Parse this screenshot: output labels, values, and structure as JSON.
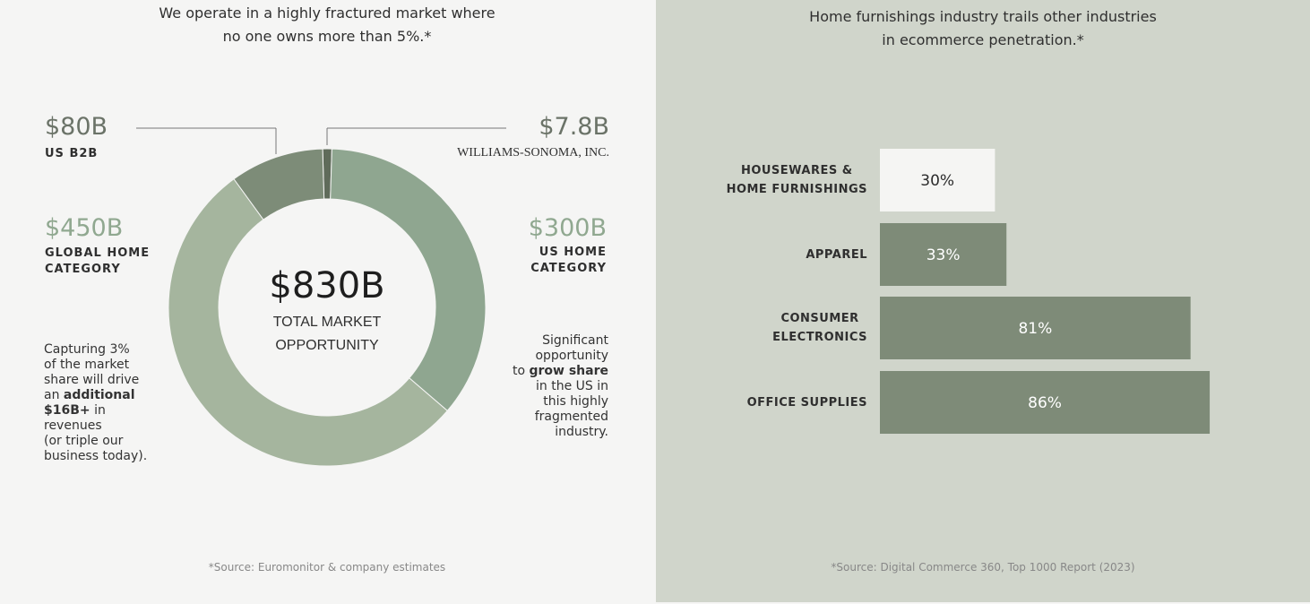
{
  "chart_data": [
    {
      "type": "donut",
      "title": "We operate in a highly fractured market where\nno one owns more than 5%.*",
      "categories": [
        "WILLIAMS-SONOMA, INC.",
        "US HOME\nCATEGORY",
        "GLOBAL HOME\nCATEGORY",
        "US B2B"
      ],
      "values": [
        7.8,
        300,
        450,
        80
      ],
      "value_labels": [
        "$7.8B",
        "$300B",
        "$450B",
        "$80B"
      ],
      "colors": [
        "#5f6b5a",
        "#8fa690",
        "#a5b59e",
        "#7d8c78"
      ],
      "center_label": "$830B",
      "center_text": "TOTAL MARKET\nOPPORTUNITY",
      "annotations": [
        [
          "Capturing 3%\nof the market\nshare will drive\nan ",
          "additional\n$16B+",
          " in\nrevenues\n(or triple our\nbusiness today)."
        ],
        [
          "Significant\nopportunity\nto ",
          "grow share",
          "\nin the US in\nthis highly\nfragmented\nindustry."
        ]
      ],
      "source": "*Source: Euromonitor & company estimates"
    },
    {
      "type": "bar",
      "title": "Home furnishings industry trails other industries\nin ecommerce penetration.*",
      "categories": [
        "HOUSEWARES &\nHOME FURNISHINGS",
        "APPAREL",
        "CONSUMER\nELECTRONICS",
        "OFFICE SUPPLIES"
      ],
      "values": [
        30,
        33,
        81,
        86
      ],
      "value_labels": [
        "30%",
        "33%",
        "81%",
        "86%"
      ],
      "colors": [
        "#f5f5f3",
        "#7e8b78",
        "#7e8b78",
        "#7e8b78"
      ],
      "label_colors": [
        "#2b2b2b",
        "#ffffff",
        "#ffffff",
        "#ffffff"
      ],
      "xlim": [
        0,
        100
      ],
      "source": "*Source: Digital Commerce 360, Top 1000 Report (2023)"
    }
  ]
}
